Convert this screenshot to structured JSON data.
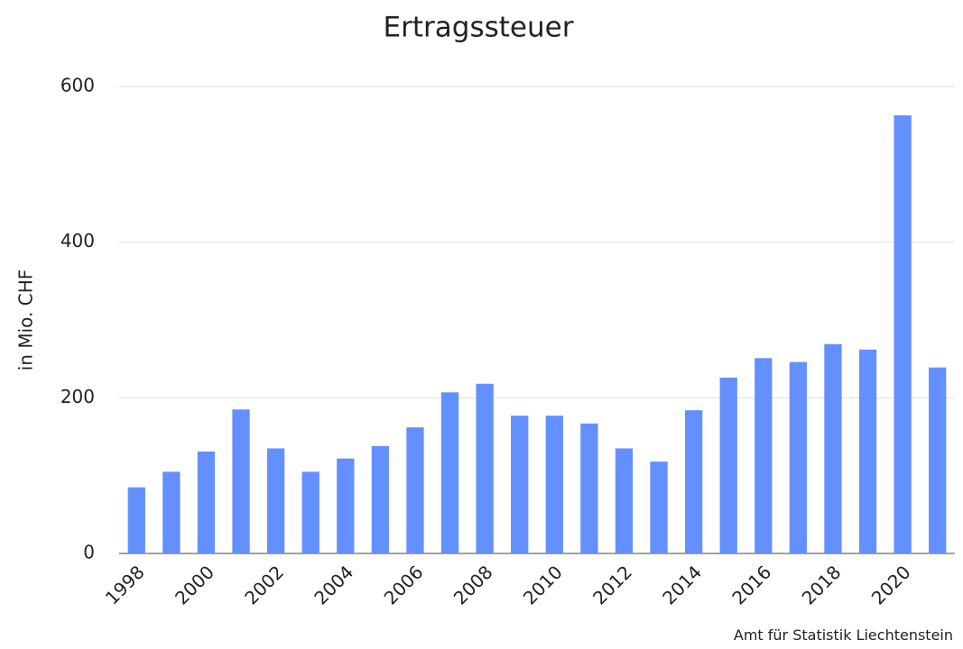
{
  "chart_data": {
    "type": "bar",
    "title": "Ertragssteuer",
    "y_label": "in Mio. CHF",
    "source": "Amt für Statistik Liechtenstein",
    "categories": [
      "1998",
      null,
      "2000",
      null,
      "2002",
      null,
      "2004",
      null,
      "2006",
      null,
      "2008",
      null,
      "2010",
      null,
      "2012",
      null,
      "2014",
      null,
      "2016",
      null,
      "2018",
      null,
      "2020",
      null
    ],
    "values": [
      85,
      105,
      131,
      185,
      135,
      105,
      122,
      138,
      162,
      207,
      218,
      177,
      177,
      167,
      135,
      118,
      184,
      226,
      251,
      246,
      269,
      262,
      563,
      239
    ],
    "color": "#648fff",
    "ylim": [
      0,
      600
    ],
    "yticks": [
      0,
      200,
      400,
      600
    ],
    "grid": true
  }
}
